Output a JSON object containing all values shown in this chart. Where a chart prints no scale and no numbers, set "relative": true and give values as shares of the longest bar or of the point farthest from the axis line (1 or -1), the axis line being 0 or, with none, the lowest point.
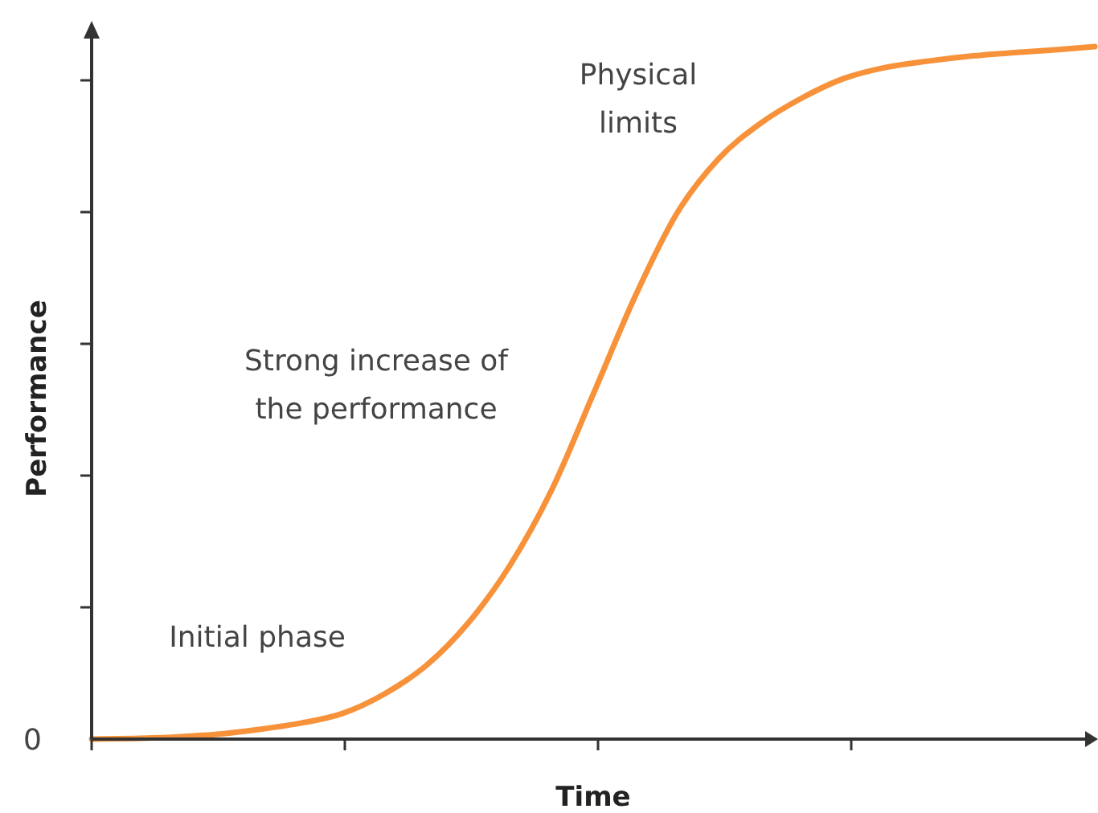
{
  "chart_data": {
    "type": "line",
    "relative": true,
    "xlabel": "Time",
    "ylabel": "Performance",
    "categories": [
      null,
      null,
      null,
      null,
      null,
      null,
      null,
      null,
      null,
      null,
      null,
      null,
      null,
      null,
      null,
      null,
      null,
      null,
      null,
      null,
      null,
      null,
      null,
      null,
      null
    ],
    "series": [
      {
        "color": "#f7923a",
        "values": [
          0,
          0.001,
          0.003,
          0.007,
          0.014,
          0.023,
          0.037,
          0.065,
          0.106,
          0.167,
          0.25,
          0.359,
          0.498,
          0.639,
          0.759,
          0.838,
          0.889,
          0.926,
          0.954,
          0.97,
          0.979,
          0.986,
          0.991,
          0.995,
          1
        ]
      }
    ],
    "annotations": [
      "Physical limits",
      "Strong increase of the performance",
      "Initial phase",
      "0"
    ],
    "legend": false,
    "marker": "none",
    "line_style": "solid"
  }
}
